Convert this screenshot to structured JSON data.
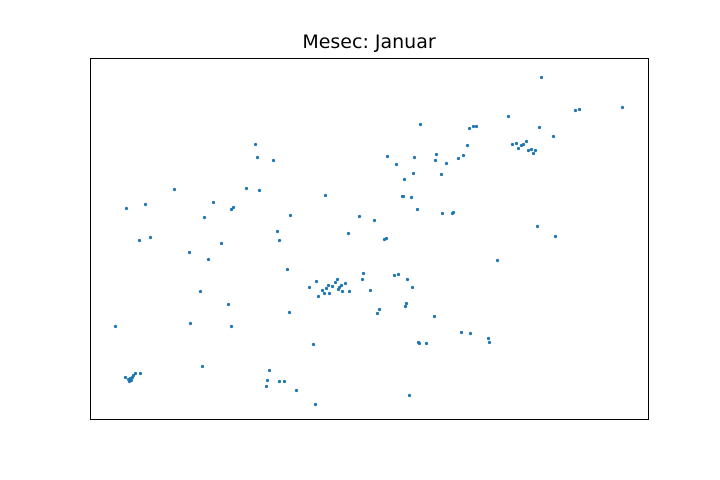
{
  "chart_data": {
    "type": "scatter",
    "title": "Mesec: Januar",
    "xlabel": "",
    "ylabel": "",
    "xlim": [
      0,
      558
    ],
    "ylim": [
      0,
      361
    ],
    "grid": false,
    "axes_ticks": false,
    "marker_color": "#1f77b4",
    "series": [
      {
        "points": [
          [
            25,
            93
          ],
          [
            36,
            211
          ],
          [
            35,
            42
          ],
          [
            38,
            40
          ],
          [
            39,
            38
          ],
          [
            40,
            41
          ],
          [
            42,
            42
          ],
          [
            43,
            44
          ],
          [
            45,
            46
          ],
          [
            41,
            39
          ],
          [
            50,
            46
          ],
          [
            49,
            179
          ],
          [
            55,
            215
          ],
          [
            60,
            182
          ],
          [
            84,
            230
          ],
          [
            99,
            167
          ],
          [
            100,
            96
          ],
          [
            110,
            128
          ],
          [
            112,
            53
          ],
          [
            114,
            202
          ],
          [
            118,
            160
          ],
          [
            123,
            217
          ],
          [
            131,
            176
          ],
          [
            138,
            115
          ],
          [
            141,
            93
          ],
          [
            141,
            210
          ],
          [
            143,
            212
          ],
          [
            156,
            231
          ],
          [
            165,
            275
          ],
          [
            167,
            262
          ],
          [
            169,
            229
          ],
          [
            183,
            259
          ],
          [
            187,
            188
          ],
          [
            189,
            179
          ],
          [
            197,
            150
          ],
          [
            199,
            107
          ],
          [
            200,
            204
          ],
          [
            176,
            33
          ],
          [
            177,
            39
          ],
          [
            179,
            49
          ],
          [
            189,
            38
          ],
          [
            194,
            38
          ],
          [
            206,
            29
          ],
          [
            223,
            75
          ],
          [
            225,
            15
          ],
          [
            219,
            132
          ],
          [
            226,
            138
          ],
          [
            228,
            123
          ],
          [
            232,
            129
          ],
          [
            234,
            126
          ],
          [
            236,
            131
          ],
          [
            238,
            134
          ],
          [
            239,
            126
          ],
          [
            242,
            133
          ],
          [
            245,
            137
          ],
          [
            247,
            140
          ],
          [
            248,
            130
          ],
          [
            249,
            132
          ],
          [
            251,
            134
          ],
          [
            252,
            128
          ],
          [
            255,
            136
          ],
          [
            259,
            128
          ],
          [
            235,
            224
          ],
          [
            258,
            186
          ],
          [
            269,
            203
          ],
          [
            272,
            140
          ],
          [
            273,
            146
          ],
          [
            280,
            129
          ],
          [
            284,
            199
          ],
          [
            287,
            106
          ],
          [
            289,
            110
          ],
          [
            294,
            180
          ],
          [
            296,
            181
          ],
          [
            297,
            263
          ],
          [
            304,
            144
          ],
          [
            306,
            255
          ],
          [
            308,
            145
          ],
          [
            312,
            223
          ],
          [
            313,
            223
          ],
          [
            314,
            240
          ],
          [
            315,
            113
          ],
          [
            316,
            116
          ],
          [
            317,
            140
          ],
          [
            319,
            24
          ],
          [
            321,
            222
          ],
          [
            322,
            132
          ],
          [
            323,
            246
          ],
          [
            324,
            262
          ],
          [
            327,
            210
          ],
          [
            328,
            77
          ],
          [
            329,
            76
          ],
          [
            330,
            295
          ],
          [
            336,
            76
          ],
          [
            344,
            103
          ],
          [
            345,
            259
          ],
          [
            346,
            265
          ],
          [
            351,
            245
          ],
          [
            352,
            206
          ],
          [
            356,
            256
          ],
          [
            362,
            206
          ],
          [
            363,
            207
          ],
          [
            368,
            261
          ],
          [
            373,
            264
          ],
          [
            371,
            87
          ],
          [
            377,
            274
          ],
          [
            379,
            291
          ],
          [
            380,
            86
          ],
          [
            383,
            293
          ],
          [
            386,
            293
          ],
          [
            398,
            81
          ],
          [
            399,
            77
          ],
          [
            407,
            159
          ],
          [
            418,
            303
          ],
          [
            422,
            275
          ],
          [
            426,
            276
          ],
          [
            428,
            271
          ],
          [
            431,
            274
          ],
          [
            433,
            275
          ],
          [
            436,
            278
          ],
          [
            438,
            269
          ],
          [
            441,
            270
          ],
          [
            443,
            266
          ],
          [
            445,
            269
          ],
          [
            447,
            193
          ],
          [
            449,
            292
          ],
          [
            451,
            342
          ],
          [
            463,
            283
          ],
          [
            465,
            183
          ],
          [
            485,
            309
          ],
          [
            489,
            310
          ],
          [
            532,
            312
          ]
        ]
      }
    ]
  }
}
